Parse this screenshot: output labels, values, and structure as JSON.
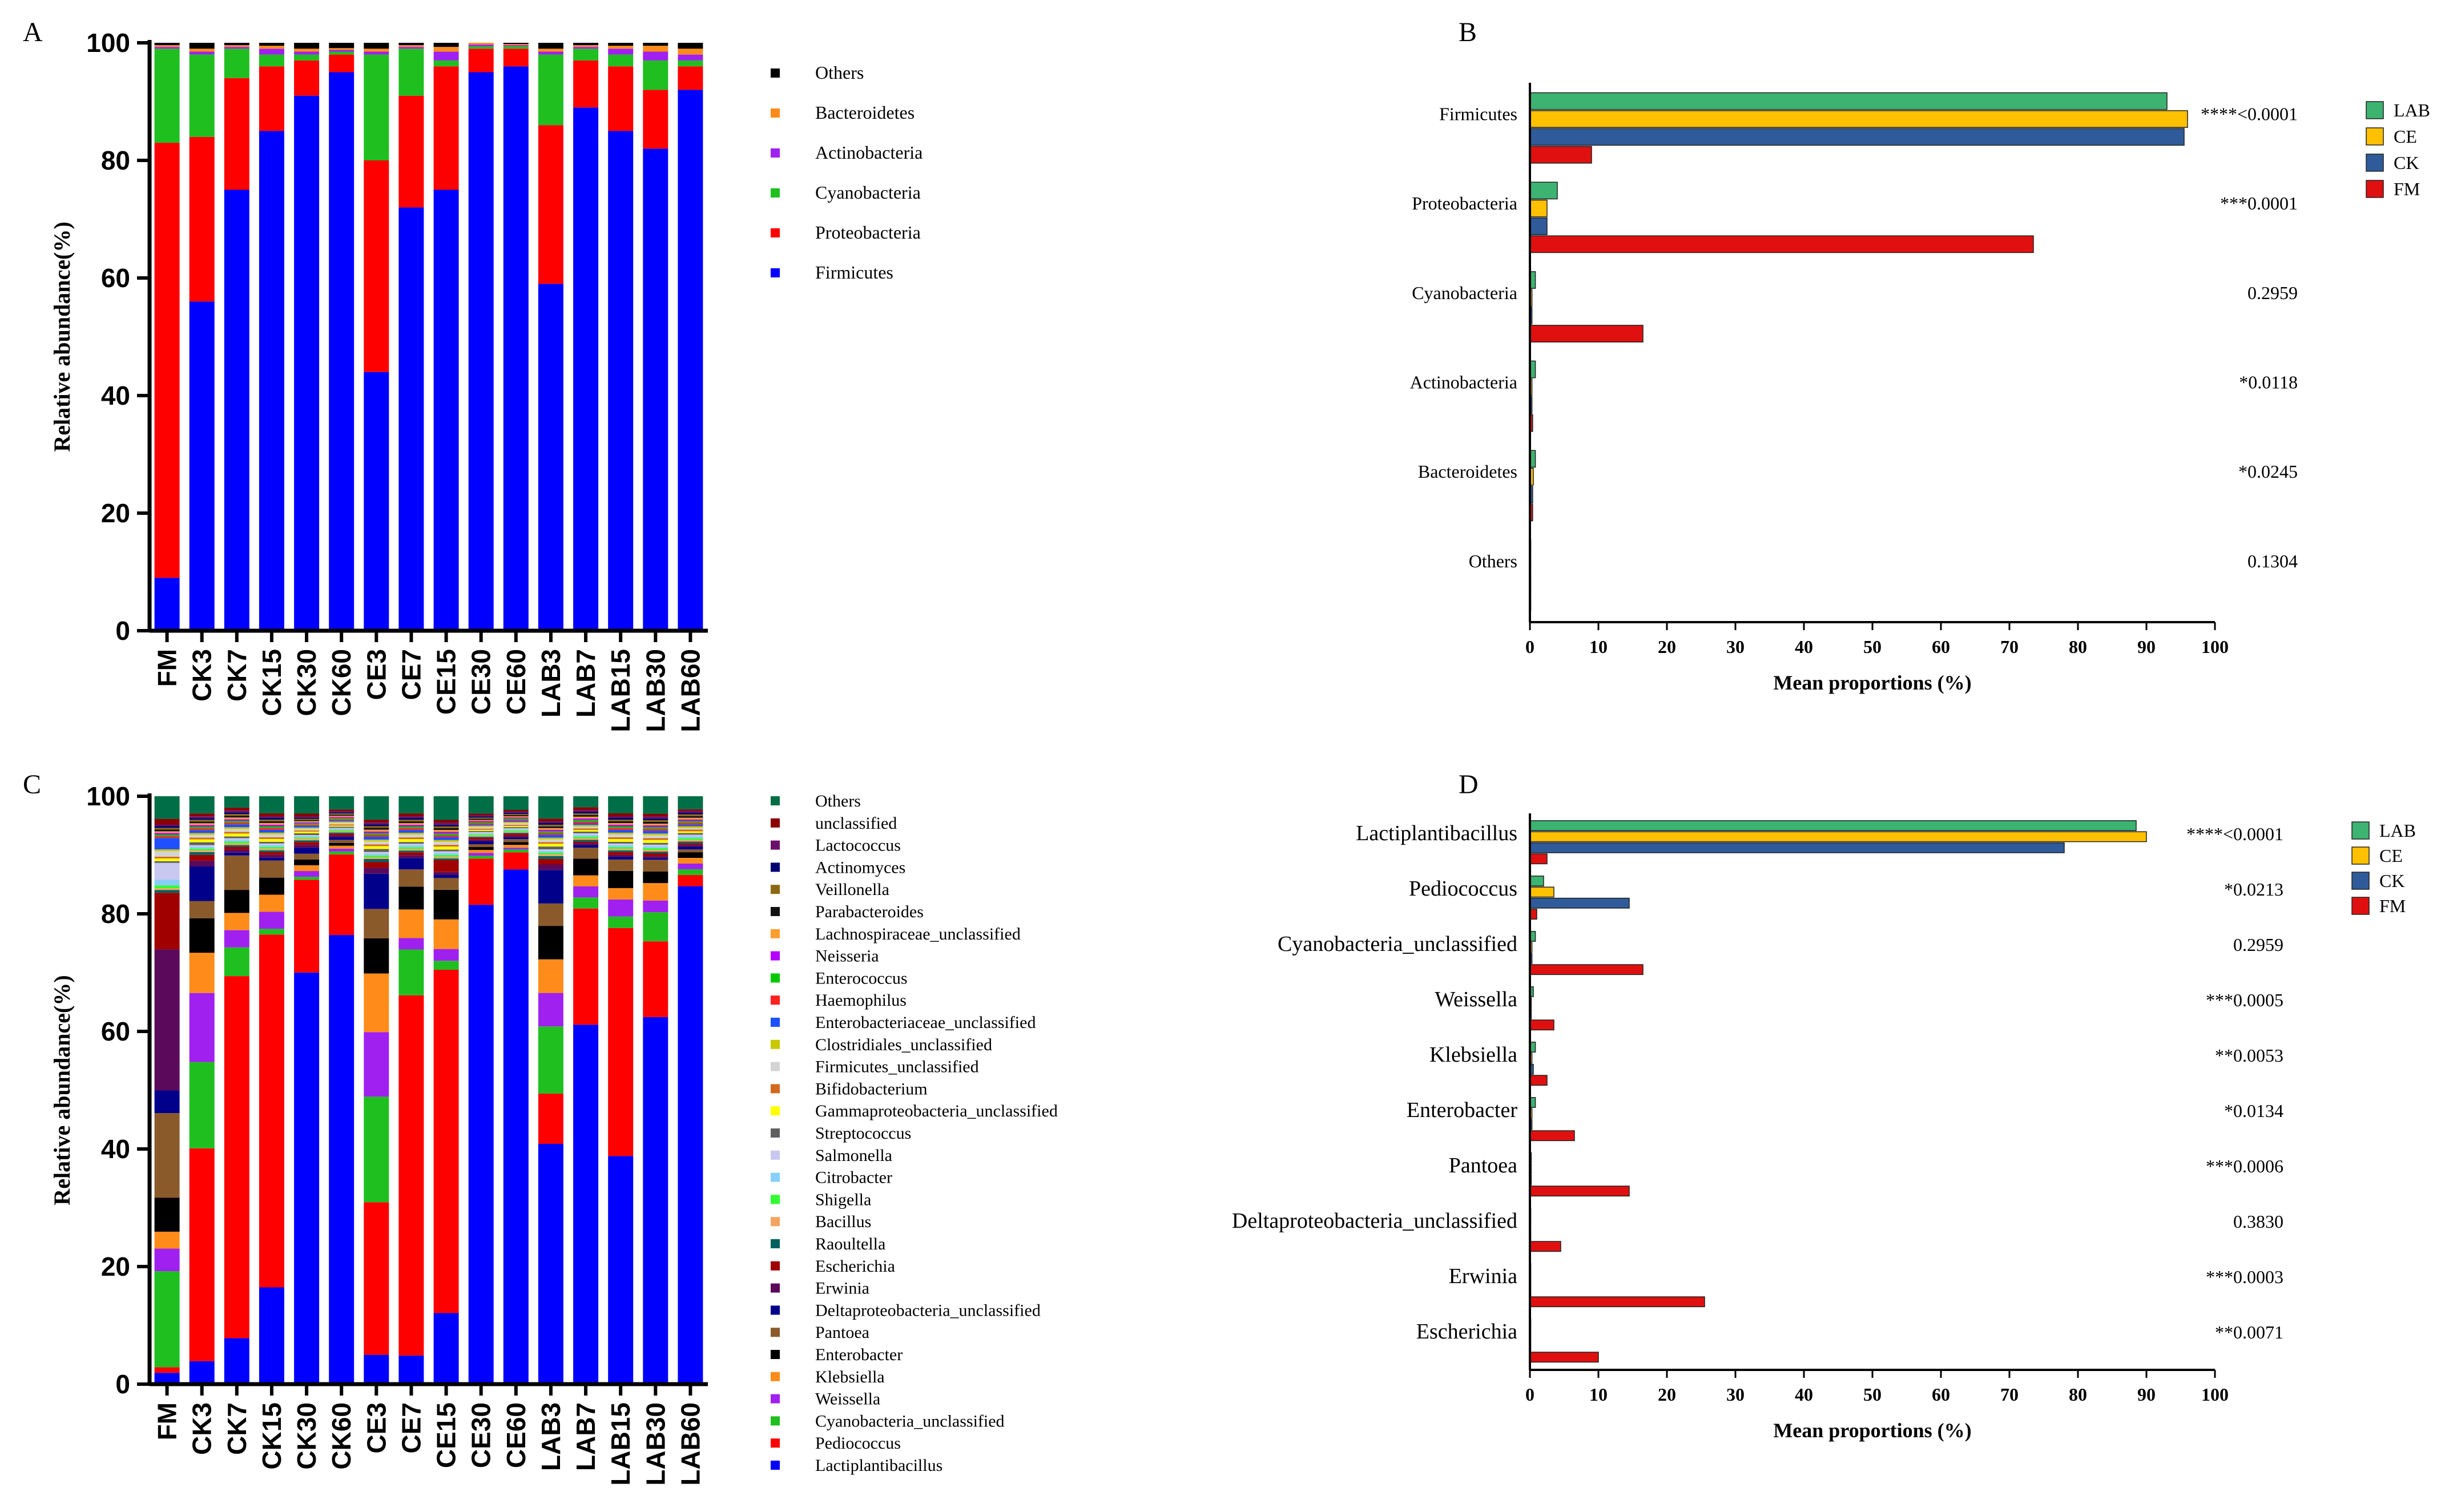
{
  "chart_data": [
    {
      "panel": "A",
      "type": "bar",
      "stacked": true,
      "ylabel": "Relative abundance(%)",
      "ylim": [
        0,
        100
      ],
      "yticks": [
        "0",
        "20",
        "40",
        "60",
        "80",
        "100"
      ],
      "categories": [
        "FM",
        "CK3",
        "CK7",
        "CK15",
        "CK30",
        "CK60",
        "CE3",
        "CE7",
        "CE15",
        "CE30",
        "CE60",
        "LAB3",
        "LAB7",
        "LAB15",
        "LAB30",
        "LAB60"
      ],
      "legend_title_order": "top-to-bottom",
      "series": [
        {
          "name": "Firmicutes",
          "color": "#0000FF",
          "values": [
            9,
            56,
            75,
            85,
            91,
            95,
            44,
            72,
            75,
            95,
            96,
            59,
            89,
            85,
            82,
            92
          ]
        },
        {
          "name": "Proteobacteria",
          "color": "#FF0000",
          "values": [
            74,
            28,
            19,
            11,
            6,
            3,
            36,
            19,
            21,
            4,
            3,
            27,
            8,
            11,
            10,
            4
          ]
        },
        {
          "name": "Cyanobacteria",
          "color": "#1FBF1F",
          "values": [
            16,
            14,
            5,
            2,
            1,
            0.5,
            18,
            8,
            1,
            0.4,
            0.4,
            12,
            2,
            2,
            5,
            1
          ]
        },
        {
          "name": "Actinobacteria",
          "color": "#A020F0",
          "values": [
            0.3,
            0.5,
            0.3,
            1,
            0.5,
            0.3,
            0.5,
            0.3,
            1.5,
            0.3,
            0.2,
            0.5,
            0.3,
            1,
            1.5,
            1
          ]
        },
        {
          "name": "Bacteroidetes",
          "color": "#FF8C1A",
          "values": [
            0.3,
            0.5,
            0.3,
            0.5,
            0.5,
            0.3,
            0.5,
            0.3,
            0.8,
            0.3,
            0.2,
            0.5,
            0.3,
            0.5,
            1,
            1
          ]
        },
        {
          "name": "Others",
          "color": "#000000",
          "values": [
            0.4,
            1,
            0.4,
            0.5,
            1,
            0.9,
            1,
            0.4,
            0.7,
            0,
            0.2,
            1,
            0.4,
            0.5,
            0.5,
            1
          ]
        }
      ]
    },
    {
      "panel": "B",
      "type": "bar",
      "orientation": "horizontal",
      "xlabel": "Mean proportions (%)",
      "xlim": [
        0,
        100
      ],
      "xticks": [
        "0",
        "10",
        "20",
        "30",
        "40",
        "50",
        "60",
        "70",
        "80",
        "90",
        "100"
      ],
      "categories": [
        "Firmicutes",
        "Proteobacteria",
        "Cyanobacteria",
        "Actinobacteria",
        "Bacteroidetes",
        "Others"
      ],
      "pvalues": [
        "****<0.0001",
        "***0.0001",
        "0.2959",
        "*0.0118",
        "*0.0245",
        "0.1304"
      ],
      "series": [
        {
          "name": "LAB",
          "color": "#3CB371",
          "values": [
            93,
            4,
            0.8,
            0.8,
            0.8,
            0.1
          ]
        },
        {
          "name": "CE",
          "color": "#FFC000",
          "values": [
            96,
            2.5,
            0.3,
            0.3,
            0.5,
            0.1
          ]
        },
        {
          "name": "CK",
          "color": "#2F5B9A",
          "values": [
            95.5,
            2.5,
            0.3,
            0.3,
            0.4,
            0.1
          ]
        },
        {
          "name": "FM",
          "color": "#E01010",
          "values": [
            9,
            73.5,
            16.5,
            0.4,
            0.4,
            0.1
          ]
        }
      ]
    },
    {
      "panel": "C",
      "type": "bar",
      "stacked": true,
      "ylabel": "Relative abundance(%)",
      "ylim": [
        0,
        100
      ],
      "yticks": [
        "0",
        "20",
        "40",
        "60",
        "80",
        "100"
      ],
      "categories": [
        "FM",
        "CK3",
        "CK7",
        "CK15",
        "CK30",
        "CK60",
        "CE3",
        "CE7",
        "CE15",
        "CE30",
        "CE60",
        "LAB3",
        "LAB7",
        "LAB15",
        "LAB30",
        "LAB60"
      ],
      "series": [
        {
          "name": "Lactiplantibacillus",
          "color": "#0000FF",
          "values": [
            2,
            4,
            8,
            17,
            71,
            78,
            5,
            5,
            12,
            83,
            90,
            43,
            65,
            40,
            63,
            88
          ]
        },
        {
          "name": "Pediococcus",
          "color": "#FF0000",
          "values": [
            1,
            37,
            63,
            62,
            16,
            14,
            26,
            63,
            58,
            8,
            3,
            9,
            21,
            40,
            13,
            2
          ]
        },
        {
          "name": "Cyanobacteria_unclassified",
          "color": "#1FBF1F",
          "values": [
            17,
            15,
            5,
            1,
            0.5,
            0.5,
            18,
            8,
            1.5,
            0.5,
            0.5,
            12,
            2,
            2,
            5,
            1
          ]
        },
        {
          "name": "Weissella",
          "color": "#A020F0",
          "values": [
            4,
            12,
            3,
            3,
            1,
            0.5,
            11,
            2,
            2,
            0.5,
            0.3,
            6,
            2,
            3,
            2,
            1
          ]
        },
        {
          "name": "Klebsiella",
          "color": "#FF8C1A",
          "values": [
            3,
            7,
            3,
            3,
            1,
            0.5,
            10,
            5,
            5,
            0.5,
            0.5,
            6,
            2,
            2,
            3,
            1
          ]
        },
        {
          "name": "Enterobacter",
          "color": "#000000",
          "values": [
            6,
            6,
            4,
            3,
            1,
            0.5,
            6,
            4,
            5,
            0.5,
            0.5,
            6,
            3,
            3,
            2,
            1
          ]
        },
        {
          "name": "Pantoea",
          "color": "#8B5A2B",
          "values": [
            15,
            3,
            6,
            3,
            1,
            0.5,
            5,
            3,
            2,
            0.5,
            0.5,
            4,
            2,
            2,
            2,
            0.5
          ]
        },
        {
          "name": "Deltaproteobacteria_unclassified",
          "color": "#00008B",
          "values": [
            4,
            6,
            0.5,
            0.5,
            1,
            0.5,
            6,
            2,
            0.5,
            0.5,
            0.3,
            6,
            0.5,
            0.5,
            0.3,
            0.5
          ]
        },
        {
          "name": "Erwinia",
          "color": "#5B0A5B",
          "values": [
            25,
            1,
            0.5,
            0.5,
            0.5,
            0.3,
            1,
            0.5,
            0.5,
            0.3,
            0.3,
            1,
            0.3,
            0.3,
            0.3,
            0.3
          ]
        },
        {
          "name": "Escherichia",
          "color": "#A00000",
          "values": [
            10,
            1,
            0.5,
            0.5,
            0.5,
            0.3,
            1,
            0.5,
            2,
            0.3,
            0.3,
            1,
            0.3,
            0.5,
            0.5,
            0.3
          ]
        },
        {
          "name": "Raoultella",
          "color": "#006060",
          "values": [
            0.5,
            0.5,
            0.3,
            0.3,
            0.3,
            0.2,
            0.5,
            0.3,
            0.3,
            0.2,
            0.2,
            0.5,
            0.3,
            0.3,
            0.3,
            0.3
          ]
        },
        {
          "name": "Bacillus",
          "color": "#F4A460",
          "values": [
            0.3,
            0.3,
            0.3,
            0.3,
            0.3,
            0.2,
            0.3,
            0.3,
            0.3,
            0.2,
            0.2,
            0.3,
            0.3,
            0.3,
            0.3,
            0.3
          ]
        },
        {
          "name": "Shigella",
          "color": "#32FF32",
          "values": [
            0.5,
            0.3,
            0.3,
            0.3,
            0.2,
            0.2,
            0.3,
            0.3,
            0.3,
            0.2,
            0.2,
            0.3,
            0.3,
            0.3,
            0.3,
            0.3
          ]
        },
        {
          "name": "Citrobacter",
          "color": "#87CEFA",
          "values": [
            1,
            0.3,
            0.3,
            0.3,
            0.2,
            0.2,
            0.3,
            0.3,
            0.3,
            0.2,
            0.2,
            0.3,
            0.3,
            0.3,
            0.3,
            0.3
          ]
        },
        {
          "name": "Salmonella",
          "color": "#C8C8F0",
          "values": [
            3,
            0.3,
            0.3,
            0.3,
            0.2,
            0.2,
            0.3,
            0.3,
            0.3,
            0.2,
            0.2,
            0.3,
            0.3,
            0.3,
            0.3,
            0.3
          ]
        },
        {
          "name": "Streptococcus",
          "color": "#606060",
          "values": [
            0.3,
            0.5,
            0.3,
            0.3,
            0.3,
            0.2,
            0.5,
            0.3,
            0.3,
            0.2,
            0.2,
            0.5,
            0.3,
            0.3,
            0.3,
            0.3
          ]
        },
        {
          "name": "Gammaproteobacteria_unclassified",
          "color": "#FFFF00",
          "values": [
            0.5,
            0.5,
            0.5,
            0.5,
            0.3,
            0.2,
            0.5,
            0.5,
            0.5,
            0.2,
            0.2,
            0.5,
            0.3,
            0.5,
            0.5,
            0.3
          ]
        },
        {
          "name": "Bifidobacterium",
          "color": "#D2691E",
          "values": [
            0.3,
            0.3,
            0.3,
            0.3,
            0.2,
            0.2,
            0.3,
            0.3,
            0.3,
            0.2,
            0.2,
            0.3,
            0.3,
            0.3,
            0.3,
            0.3
          ]
        },
        {
          "name": "Firmicutes_unclassified",
          "color": "#D3D3D3",
          "values": [
            1,
            0.5,
            0.5,
            0.5,
            0.3,
            0.3,
            0.5,
            0.5,
            0.5,
            0.3,
            0.3,
            0.5,
            0.3,
            0.5,
            0.5,
            0.3
          ]
        },
        {
          "name": "Clostridiales_unclassified",
          "color": "#C8C800",
          "values": [
            0.3,
            0.3,
            0.3,
            0.3,
            0.2,
            0.2,
            0.3,
            0.3,
            0.3,
            0.2,
            0.2,
            0.3,
            0.3,
            0.3,
            0.3,
            0.3
          ]
        },
        {
          "name": "Enterobacteriaceae_unclassified",
          "color": "#1E50FF",
          "values": [
            2,
            0.5,
            0.5,
            0.5,
            0.3,
            0.2,
            0.5,
            0.5,
            0.5,
            0.2,
            0.2,
            0.5,
            0.3,
            0.5,
            0.5,
            0.3
          ]
        },
        {
          "name": "Haemophilus",
          "color": "#FF2020",
          "values": [
            0.3,
            0.3,
            0.3,
            0.3,
            0.2,
            0.2,
            0.3,
            0.3,
            0.3,
            0.2,
            0.2,
            0.3,
            0.3,
            0.3,
            0.3,
            0.3
          ]
        },
        {
          "name": "Enterococcus",
          "color": "#00C800",
          "values": [
            0.3,
            0.3,
            0.3,
            0.3,
            0.2,
            0.2,
            0.3,
            0.3,
            0.3,
            0.2,
            0.2,
            0.3,
            0.3,
            0.3,
            0.3,
            0.3
          ]
        },
        {
          "name": "Neisseria",
          "color": "#B400FF",
          "values": [
            0.3,
            0.3,
            0.3,
            0.3,
            0.2,
            0.2,
            0.3,
            0.3,
            0.3,
            0.2,
            0.2,
            0.3,
            0.3,
            0.3,
            0.3,
            0.3
          ]
        },
        {
          "name": "Lachnospiraceae_unclassified",
          "color": "#FF9E2C",
          "values": [
            0.3,
            0.3,
            0.3,
            0.3,
            0.2,
            0.2,
            0.3,
            0.3,
            0.3,
            0.2,
            0.2,
            0.3,
            0.3,
            0.3,
            0.3,
            0.3
          ]
        },
        {
          "name": "Parabacteroides",
          "color": "#111111",
          "values": [
            0.3,
            0.3,
            0.3,
            0.3,
            0.2,
            0.2,
            0.3,
            0.3,
            0.3,
            0.2,
            0.2,
            0.3,
            0.3,
            0.3,
            0.3,
            0.3
          ]
        },
        {
          "name": "Veillonella",
          "color": "#8B6914",
          "values": [
            0.3,
            0.3,
            0.3,
            0.3,
            0.2,
            0.2,
            0.3,
            0.3,
            0.3,
            0.2,
            0.2,
            0.3,
            0.3,
            0.3,
            0.3,
            0.3
          ]
        },
        {
          "name": "Actinomyces",
          "color": "#000070",
          "values": [
            0.3,
            0.3,
            0.3,
            0.3,
            0.2,
            0.2,
            0.3,
            0.3,
            0.3,
            0.2,
            0.2,
            0.3,
            0.3,
            0.3,
            0.3,
            0.3
          ]
        },
        {
          "name": "Lactococcus",
          "color": "#6A0F6A",
          "values": [
            0.3,
            0.3,
            0.3,
            0.3,
            0.2,
            0.2,
            0.3,
            0.3,
            0.3,
            0.2,
            0.2,
            0.3,
            0.3,
            0.3,
            0.3,
            0.3
          ]
        },
        {
          "name": "unclassified",
          "color": "#8B0000",
          "values": [
            1,
            0.5,
            0.5,
            0.5,
            0.5,
            0.3,
            0.5,
            0.5,
            0.5,
            0.3,
            0.3,
            0.5,
            0.5,
            0.5,
            0.5,
            0.3
          ]
        },
        {
          "name": "Others",
          "color": "#006E46",
          "values": [
            4,
            3,
            2,
            3,
            3,
            2.3,
            4,
            3,
            4,
            3,
            2.4,
            4,
            2,
            3,
            3,
            2.3
          ]
        }
      ]
    },
    {
      "panel": "D",
      "type": "bar",
      "orientation": "horizontal",
      "xlabel": "Mean proportions (%)",
      "xlim": [
        0,
        100
      ],
      "xticks": [
        "0",
        "10",
        "20",
        "30",
        "40",
        "50",
        "60",
        "70",
        "80",
        "90",
        "100"
      ],
      "categories": [
        "Lactiplantibacillus",
        "Pediococcus",
        "Cyanobacteria_unclassified",
        "Weissella",
        "Klebsiella",
        "Enterobacter",
        "Pantoea",
        "Deltaproteobacteria_unclassified",
        "Erwinia",
        "Escherichia"
      ],
      "pvalues": [
        "****<0.0001",
        "*0.0213",
        "0.2959",
        "***0.0005",
        "**0.0053",
        "*0.0134",
        "***0.0006",
        "0.3830",
        "***0.0003",
        "**0.0071"
      ],
      "series": [
        {
          "name": "LAB",
          "color": "#3CB371",
          "values": [
            88.5,
            2,
            0.8,
            0.5,
            0.8,
            0.8,
            0.2,
            0.1,
            0.1,
            0.1
          ]
        },
        {
          "name": "CE",
          "color": "#FFC000",
          "values": [
            90,
            3.5,
            0.3,
            0.2,
            0.3,
            0.3,
            0.2,
            0.1,
            0.1,
            0.1
          ]
        },
        {
          "name": "CK",
          "color": "#2F5B9A",
          "values": [
            78,
            14.5,
            0.3,
            0.2,
            0.5,
            0.3,
            0.2,
            0.1,
            0.1,
            0.1
          ]
        },
        {
          "name": "FM",
          "color": "#E01010",
          "values": [
            2.5,
            1,
            16.5,
            3.5,
            2.5,
            6.5,
            14.5,
            4.5,
            25.5,
            10
          ]
        }
      ]
    }
  ],
  "panel_letters": [
    "A",
    "B",
    "C",
    "D"
  ]
}
